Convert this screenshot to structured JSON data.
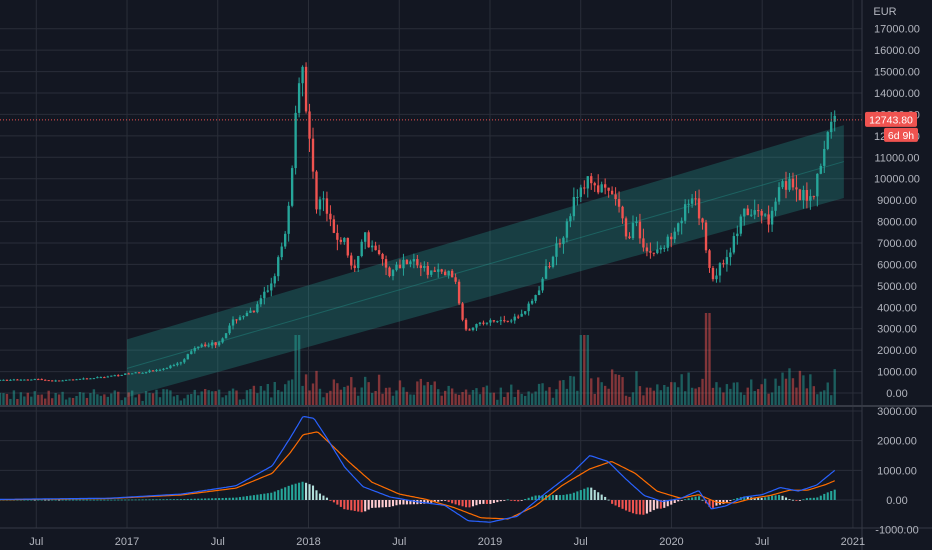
{
  "chart_data": {
    "type": "candlestick",
    "currency": "EUR",
    "interval": "weekly",
    "main_pane": {
      "ylim": [
        0,
        17500
      ],
      "y_ticks": [
        "17000.00",
        "16000.00",
        "15000.00",
        "14000.00",
        "13000.00",
        "12000.00",
        "11000.00",
        "10000.00",
        "9000.00",
        "8000.00",
        "7000.00",
        "6000.00",
        "5000.00",
        "4000.00",
        "3000.00",
        "2000.00",
        "1000.00",
        "0.00"
      ],
      "y_tick_values": [
        17000,
        16000,
        15000,
        14000,
        13000,
        12000,
        11000,
        10000,
        9000,
        8000,
        7000,
        6000,
        5000,
        4000,
        3000,
        2000,
        1000,
        0
      ],
      "last_price": "12743.80",
      "last_price_value": 12743.8,
      "countdown": "6d 9h",
      "channel": {
        "t_start": 2017.0,
        "t_end": 2020.95,
        "upper_start": 2500,
        "upper_end": 12500,
        "lower_start": -200,
        "lower_end": 9100
      },
      "anchors": [
        [
          2016.3,
          600
        ],
        [
          2016.5,
          650
        ],
        [
          2016.6,
          560
        ],
        [
          2016.8,
          680
        ],
        [
          2016.99,
          880
        ],
        [
          2017.1,
          1000
        ],
        [
          2017.2,
          1100
        ],
        [
          2017.3,
          1500
        ],
        [
          2017.4,
          2300
        ],
        [
          2017.5,
          2300
        ],
        [
          2017.6,
          3500
        ],
        [
          2017.7,
          3800
        ],
        [
          2017.8,
          5200
        ],
        [
          2017.88,
          7500
        ],
        [
          2017.93,
          13000
        ],
        [
          2017.96,
          16000
        ],
        [
          2018.0,
          12000
        ],
        [
          2018.04,
          9000
        ],
        [
          2018.08,
          9000
        ],
        [
          2018.13,
          7500
        ],
        [
          2018.2,
          7000
        ],
        [
          2018.25,
          5500
        ],
        [
          2018.3,
          7500
        ],
        [
          2018.38,
          6500
        ],
        [
          2018.45,
          5600
        ],
        [
          2018.55,
          6300
        ],
        [
          2018.65,
          5700
        ],
        [
          2018.8,
          5500
        ],
        [
          2018.86,
          3000
        ],
        [
          2018.93,
          3200
        ],
        [
          2019.0,
          3300
        ],
        [
          2019.15,
          3500
        ],
        [
          2019.25,
          4500
        ],
        [
          2019.4,
          7500
        ],
        [
          2019.47,
          9000
        ],
        [
          2019.55,
          10000
        ],
        [
          2019.6,
          9500
        ],
        [
          2019.7,
          9000
        ],
        [
          2019.75,
          7200
        ],
        [
          2019.8,
          8000
        ],
        [
          2019.87,
          6500
        ],
        [
          2019.96,
          6800
        ],
        [
          2020.03,
          8000
        ],
        [
          2020.12,
          9000
        ],
        [
          2020.17,
          7800
        ],
        [
          2020.22,
          5300
        ],
        [
          2020.3,
          6300
        ],
        [
          2020.4,
          8300
        ],
        [
          2020.48,
          8400
        ],
        [
          2020.55,
          8200
        ],
        [
          2020.6,
          10000
        ],
        [
          2020.65,
          9800
        ],
        [
          2020.7,
          9000
        ],
        [
          2020.78,
          9300
        ],
        [
          2020.85,
          11500
        ],
        [
          2020.88,
          13000
        ],
        [
          2020.9,
          12744
        ]
      ]
    },
    "macd_pane": {
      "ylim": [
        -1200,
        3200
      ],
      "y_ticks": [
        "3000.00",
        "2000.00",
        "1000.00",
        "0.00",
        "-1000.00"
      ],
      "y_tick_values": [
        3000,
        2000,
        1000,
        0,
        -1000
      ],
      "macd_line_color": "#2962ff",
      "signal_line_color": "#ff6d00",
      "macd": [
        [
          2016.3,
          20
        ],
        [
          2016.9,
          60
        ],
        [
          2017.3,
          200
        ],
        [
          2017.6,
          480
        ],
        [
          2017.8,
          1150
        ],
        [
          2017.9,
          2100
        ],
        [
          2017.97,
          2820
        ],
        [
          2018.03,
          2750
        ],
        [
          2018.1,
          2100
        ],
        [
          2018.2,
          1100
        ],
        [
          2018.3,
          450
        ],
        [
          2018.45,
          100
        ],
        [
          2018.6,
          -60
        ],
        [
          2018.75,
          -180
        ],
        [
          2018.88,
          -700
        ],
        [
          2019.0,
          -750
        ],
        [
          2019.15,
          -550
        ],
        [
          2019.3,
          200
        ],
        [
          2019.45,
          900
        ],
        [
          2019.55,
          1500
        ],
        [
          2019.65,
          1300
        ],
        [
          2019.75,
          700
        ],
        [
          2019.85,
          150
        ],
        [
          2019.95,
          -50
        ],
        [
          2020.05,
          50
        ],
        [
          2020.15,
          320
        ],
        [
          2020.22,
          -300
        ],
        [
          2020.3,
          -200
        ],
        [
          2020.4,
          100
        ],
        [
          2020.5,
          180
        ],
        [
          2020.6,
          420
        ],
        [
          2020.7,
          300
        ],
        [
          2020.8,
          500
        ],
        [
          2020.9,
          1000
        ]
      ],
      "signal": [
        [
          2016.3,
          10
        ],
        [
          2016.9,
          50
        ],
        [
          2017.3,
          170
        ],
        [
          2017.6,
          400
        ],
        [
          2017.8,
          900
        ],
        [
          2017.9,
          1600
        ],
        [
          2017.97,
          2200
        ],
        [
          2018.05,
          2300
        ],
        [
          2018.12,
          1900
        ],
        [
          2018.22,
          1300
        ],
        [
          2018.35,
          600
        ],
        [
          2018.5,
          200
        ],
        [
          2018.65,
          20
        ],
        [
          2018.8,
          -250
        ],
        [
          2018.95,
          -600
        ],
        [
          2019.1,
          -640
        ],
        [
          2019.25,
          -200
        ],
        [
          2019.4,
          500
        ],
        [
          2019.55,
          1050
        ],
        [
          2019.67,
          1300
        ],
        [
          2019.8,
          900
        ],
        [
          2019.92,
          300
        ],
        [
          2020.05,
          60
        ],
        [
          2020.15,
          180
        ],
        [
          2020.25,
          -80
        ],
        [
          2020.35,
          -100
        ],
        [
          2020.45,
          60
        ],
        [
          2020.55,
          160
        ],
        [
          2020.65,
          330
        ],
        [
          2020.75,
          330
        ],
        [
          2020.85,
          520
        ],
        [
          2020.9,
          650
        ]
      ]
    },
    "x_ticks": [
      {
        "label": "Jul",
        "t": 2016.5
      },
      {
        "label": "2017",
        "t": 2017.0
      },
      {
        "label": "Jul",
        "t": 2017.5
      },
      {
        "label": "2018",
        "t": 2018.0
      },
      {
        "label": "Jul",
        "t": 2018.5
      },
      {
        "label": "2019",
        "t": 2019.0
      },
      {
        "label": "Jul",
        "t": 2019.5
      },
      {
        "label": "2020",
        "t": 2020.0
      },
      {
        "label": "Jul",
        "t": 2020.5
      },
      {
        "label": "2021",
        "t": 2021.0
      }
    ],
    "x_range": [
      2016.3,
      2021.05
    ],
    "colors": {
      "up": "#26a69a",
      "down": "#ef5350",
      "channel_fill": "#26a69a",
      "grid": "#2a2e39",
      "background": "#131722",
      "axis_text": "#b2b5be",
      "price_line": "#ef5350"
    }
  }
}
